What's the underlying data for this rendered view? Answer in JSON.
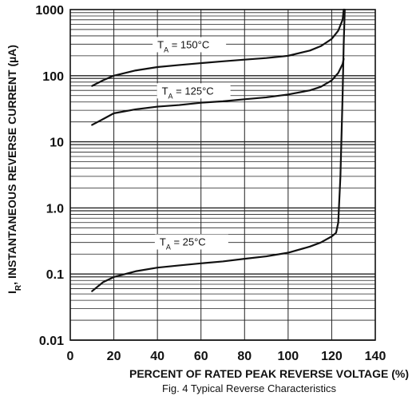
{
  "chart_data": {
    "type": "line",
    "title": "",
    "caption": "Fig. 4 Typical Reverse Characteristics",
    "xlabel": "PERCENT OF RATED PEAK REVERSE VOLTAGE (%)",
    "ylabel_main": "I",
    "ylabel_sub": "R",
    "ylabel_rest": ", INSTANTANEOUS REVERSE CURRENT (µA)",
    "xlim": [
      0,
      140
    ],
    "ylim": [
      0.01,
      1000
    ],
    "yscale": "log",
    "grid": true,
    "x_ticks": [
      "0",
      "20",
      "40",
      "60",
      "80",
      "100",
      "120",
      "140"
    ],
    "y_ticks": [
      "0.01",
      "0.1",
      "1.0",
      "10",
      "100",
      "1000"
    ],
    "series": [
      {
        "name": "TA = 150°C",
        "label_main": "T",
        "label_sub": "A",
        "label_rest": " = 150°C",
        "x": [
          10,
          15,
          20,
          30,
          40,
          50,
          60,
          70,
          80,
          90,
          100,
          110,
          115,
          120,
          123,
          125,
          125.5
        ],
        "y": [
          70,
          85,
          100,
          120,
          135,
          145,
          155,
          165,
          175,
          185,
          200,
          240,
          280,
          360,
          480,
          700,
          1000
        ]
      },
      {
        "name": "TA = 125°C",
        "label_main": "T",
        "label_sub": "A",
        "label_rest": " = 125°C",
        "x": [
          10,
          15,
          20,
          30,
          40,
          50,
          60,
          70,
          80,
          90,
          100,
          110,
          115,
          120,
          123,
          125,
          125.5
        ],
        "y": [
          18,
          22,
          27,
          31,
          34,
          36,
          39,
          41,
          44,
          47,
          52,
          60,
          68,
          85,
          110,
          150,
          180
        ]
      },
      {
        "name": "TA = 25°C",
        "label_main": "T",
        "label_sub": "A",
        "label_rest": " = 25°C",
        "x": [
          10,
          15,
          20,
          30,
          40,
          50,
          60,
          70,
          80,
          90,
          100,
          110,
          115,
          120,
          122,
          123,
          124,
          125,
          125.5,
          126
        ],
        "y": [
          0.055,
          0.075,
          0.09,
          0.11,
          0.125,
          0.135,
          0.145,
          0.155,
          0.17,
          0.185,
          0.21,
          0.26,
          0.3,
          0.37,
          0.42,
          0.6,
          3,
          50,
          300,
          1000
        ]
      }
    ]
  }
}
